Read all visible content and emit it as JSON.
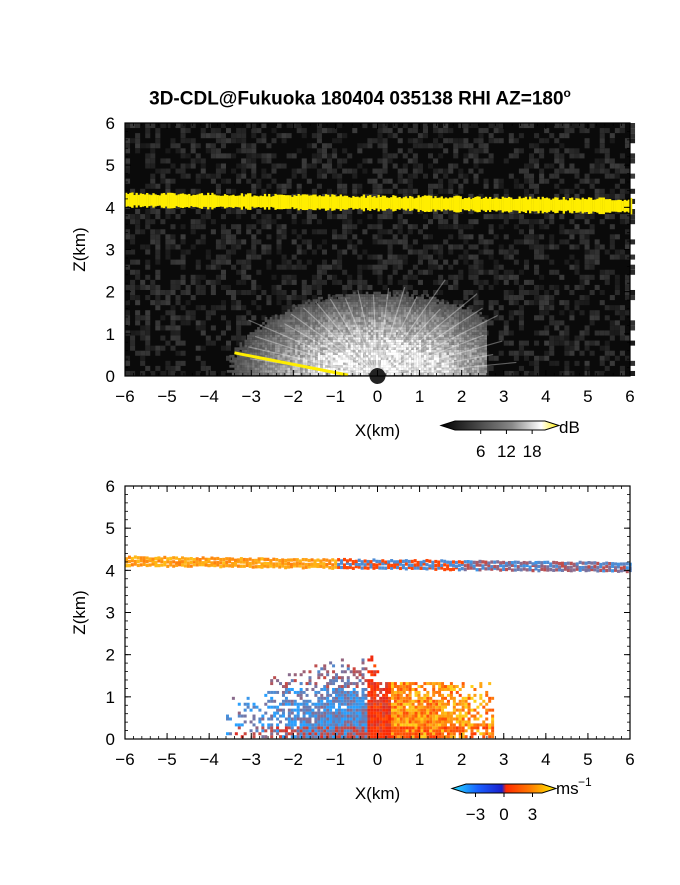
{
  "figure": {
    "title": "3D-CDL@Fukuoka 180404 035138 RHI AZ=180",
    "title_degree_sup": "o"
  },
  "chart_data": [
    {
      "type": "heatmap",
      "title": "3D-CDL@Fukuoka 180404 035138 RHI AZ=180°",
      "xlabel": "X(km)",
      "ylabel": "Z(km)",
      "xlim": [
        -6,
        6
      ],
      "ylim": [
        0,
        6
      ],
      "x_ticks": [
        -6,
        -5,
        -4,
        -3,
        -2,
        -1,
        0,
        1,
        2,
        3,
        4,
        5,
        6
      ],
      "y_ticks": [
        0,
        1,
        2,
        3,
        4,
        5,
        6
      ],
      "variable": "backscatter intensity",
      "colorbar": {
        "unit": "dB",
        "ticks": [
          6,
          12,
          18
        ],
        "colormap": "black-gray-white-yellow"
      },
      "features": {
        "cloud_layer_height_km": 4.1,
        "cloud_layer_extent_km": [
          -6,
          6
        ],
        "near_field_echo_top_km": 2.8,
        "near_field_echo_extent_km": [
          -4,
          2.6
        ],
        "low_angle_strong_echo_extent_km": [
          -3.4,
          -0.7
        ]
      },
      "colors": {
        "background": "#0a0a0a",
        "cloud": "#ffee00",
        "echo": "#ffffff"
      }
    },
    {
      "type": "heatmap",
      "xlabel": "X(km)",
      "ylabel": "Z(km)",
      "xlim": [
        -6,
        6
      ],
      "ylim": [
        0,
        6
      ],
      "x_ticks": [
        -6,
        -5,
        -4,
        -3,
        -2,
        -1,
        0,
        1,
        2,
        3,
        4,
        5,
        6
      ],
      "y_ticks": [
        0,
        1,
        2,
        3,
        4,
        5,
        6
      ],
      "variable": "Doppler velocity",
      "colorbar": {
        "unit": "ms",
        "unit_exponent": "−1",
        "ticks": [
          -3,
          0,
          3
        ],
        "colormap": "cyan-blue-red-orange-yellow"
      },
      "features": {
        "cloud_layer_height_km": 4.1,
        "cloud_layer_extent_km": [
          -6,
          6
        ],
        "negative_velocity_region_km": [
          -3.6,
          0
        ],
        "positive_velocity_region_km": [
          0,
          2.7
        ],
        "echo_top_km": 2.8
      },
      "colors": {
        "negative": "#29a0ff",
        "zero": "#ff2a00",
        "positive": "#ffd11a",
        "dark_negative": "#1a40ff"
      }
    }
  ]
}
